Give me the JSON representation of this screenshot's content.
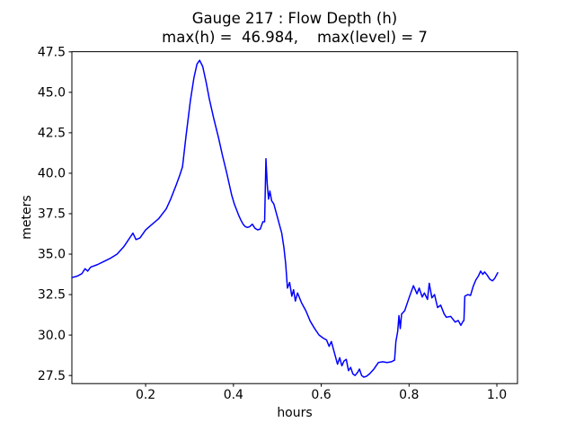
{
  "chart_data": {
    "type": "line",
    "title": "Gauge 217 : Flow Depth (h)",
    "subtitle": "max(h) =  46.984,    max(level) = 7",
    "max_h": 46.984,
    "max_level": 7,
    "xlabel": "hours",
    "ylabel": "meters",
    "xlim": [
      0.032,
      1.047
    ],
    "ylim": [
      27.0,
      47.51
    ],
    "grid": false,
    "legend": "none",
    "xticks": {
      "values": [
        0.2,
        0.4,
        0.6,
        0.8,
        1.0
      ],
      "labels": [
        "0.2",
        "0.4",
        "0.6",
        "0.8",
        "1.0"
      ]
    },
    "yticks": {
      "values": [
        27.5,
        30.0,
        32.5,
        35.0,
        37.5,
        40.0,
        42.5,
        45.0,
        47.5
      ],
      "labels": [
        "27.5",
        "30.0",
        "32.5",
        "35.0",
        "37.5",
        "40.0",
        "42.5",
        "45.0",
        "47.5"
      ]
    },
    "series": [
      {
        "name": "flow-depth",
        "color": "#0000ff",
        "line_width": 1.5,
        "points": [
          [
            0.032,
            33.55
          ],
          [
            0.045,
            33.65
          ],
          [
            0.055,
            33.8
          ],
          [
            0.062,
            34.1
          ],
          [
            0.068,
            33.95
          ],
          [
            0.075,
            34.2
          ],
          [
            0.09,
            34.35
          ],
          [
            0.105,
            34.55
          ],
          [
            0.12,
            34.75
          ],
          [
            0.135,
            35.0
          ],
          [
            0.15,
            35.45
          ],
          [
            0.16,
            35.85
          ],
          [
            0.171,
            36.3
          ],
          [
            0.178,
            35.9
          ],
          [
            0.187,
            36.0
          ],
          [
            0.2,
            36.5
          ],
          [
            0.215,
            36.85
          ],
          [
            0.23,
            37.2
          ],
          [
            0.247,
            37.8
          ],
          [
            0.257,
            38.4
          ],
          [
            0.27,
            39.3
          ],
          [
            0.278,
            39.9
          ],
          [
            0.284,
            40.4
          ],
          [
            0.292,
            42.3
          ],
          [
            0.302,
            44.5
          ],
          [
            0.31,
            45.9
          ],
          [
            0.317,
            46.75
          ],
          [
            0.323,
            46.98
          ],
          [
            0.33,
            46.6
          ],
          [
            0.338,
            45.6
          ],
          [
            0.345,
            44.6
          ],
          [
            0.355,
            43.4
          ],
          [
            0.366,
            42.2
          ],
          [
            0.375,
            41.1
          ],
          [
            0.384,
            40.1
          ],
          [
            0.396,
            38.65
          ],
          [
            0.402,
            38.1
          ],
          [
            0.407,
            37.75
          ],
          [
            0.412,
            37.4
          ],
          [
            0.417,
            37.1
          ],
          [
            0.422,
            36.85
          ],
          [
            0.427,
            36.7
          ],
          [
            0.432,
            36.65
          ],
          [
            0.437,
            36.7
          ],
          [
            0.443,
            36.85
          ],
          [
            0.449,
            36.6
          ],
          [
            0.455,
            36.5
          ],
          [
            0.461,
            36.55
          ],
          [
            0.467,
            37.0
          ],
          [
            0.471,
            37.0
          ],
          [
            0.474,
            40.9
          ],
          [
            0.477,
            39.3
          ],
          [
            0.48,
            38.4
          ],
          [
            0.483,
            38.9
          ],
          [
            0.487,
            38.3
          ],
          [
            0.492,
            38.1
          ],
          [
            0.5,
            37.3
          ],
          [
            0.51,
            36.3
          ],
          [
            0.515,
            35.4
          ],
          [
            0.519,
            34.4
          ],
          [
            0.523,
            32.9
          ],
          [
            0.528,
            33.25
          ],
          [
            0.533,
            32.4
          ],
          [
            0.537,
            32.8
          ],
          [
            0.541,
            32.1
          ],
          [
            0.546,
            32.6
          ],
          [
            0.555,
            32.0
          ],
          [
            0.565,
            31.5
          ],
          [
            0.575,
            30.85
          ],
          [
            0.585,
            30.4
          ],
          [
            0.595,
            30.0
          ],
          [
            0.605,
            29.8
          ],
          [
            0.612,
            29.7
          ],
          [
            0.618,
            29.3
          ],
          [
            0.623,
            29.6
          ],
          [
            0.63,
            28.9
          ],
          [
            0.637,
            28.2
          ],
          [
            0.642,
            28.6
          ],
          [
            0.647,
            28.1
          ],
          [
            0.652,
            28.4
          ],
          [
            0.657,
            28.5
          ],
          [
            0.662,
            27.8
          ],
          [
            0.667,
            28.0
          ],
          [
            0.672,
            27.6
          ],
          [
            0.677,
            27.5
          ],
          [
            0.683,
            27.7
          ],
          [
            0.687,
            27.9
          ],
          [
            0.692,
            27.5
          ],
          [
            0.697,
            27.4
          ],
          [
            0.703,
            27.45
          ],
          [
            0.71,
            27.6
          ],
          [
            0.72,
            27.9
          ],
          [
            0.73,
            28.3
          ],
          [
            0.74,
            28.35
          ],
          [
            0.75,
            28.3
          ],
          [
            0.76,
            28.35
          ],
          [
            0.767,
            28.45
          ],
          [
            0.77,
            29.6
          ],
          [
            0.774,
            30.2
          ],
          [
            0.777,
            31.2
          ],
          [
            0.78,
            30.4
          ],
          [
            0.783,
            31.3
          ],
          [
            0.79,
            31.5
          ],
          [
            0.8,
            32.3
          ],
          [
            0.81,
            33.05
          ],
          [
            0.818,
            32.55
          ],
          [
            0.823,
            32.9
          ],
          [
            0.83,
            32.35
          ],
          [
            0.835,
            32.6
          ],
          [
            0.842,
            32.2
          ],
          [
            0.846,
            33.2
          ],
          [
            0.852,
            32.3
          ],
          [
            0.858,
            32.5
          ],
          [
            0.865,
            31.7
          ],
          [
            0.872,
            31.85
          ],
          [
            0.88,
            31.3
          ],
          [
            0.885,
            31.1
          ],
          [
            0.895,
            31.15
          ],
          [
            0.905,
            30.8
          ],
          [
            0.912,
            30.9
          ],
          [
            0.918,
            30.6
          ],
          [
            0.923,
            30.85
          ],
          [
            0.925,
            30.9
          ],
          [
            0.927,
            32.4
          ],
          [
            0.934,
            32.5
          ],
          [
            0.94,
            32.45
          ],
          [
            0.946,
            33.0
          ],
          [
            0.952,
            33.4
          ],
          [
            0.958,
            33.65
          ],
          [
            0.963,
            33.95
          ],
          [
            0.968,
            33.75
          ],
          [
            0.972,
            33.9
          ],
          [
            0.978,
            33.7
          ],
          [
            0.984,
            33.45
          ],
          [
            0.99,
            33.35
          ],
          [
            0.995,
            33.5
          ],
          [
            1.002,
            33.85
          ]
        ]
      }
    ],
    "axes": {
      "spine_color": "#000000",
      "background": "#ffffff",
      "tick_length": 3.5
    }
  }
}
